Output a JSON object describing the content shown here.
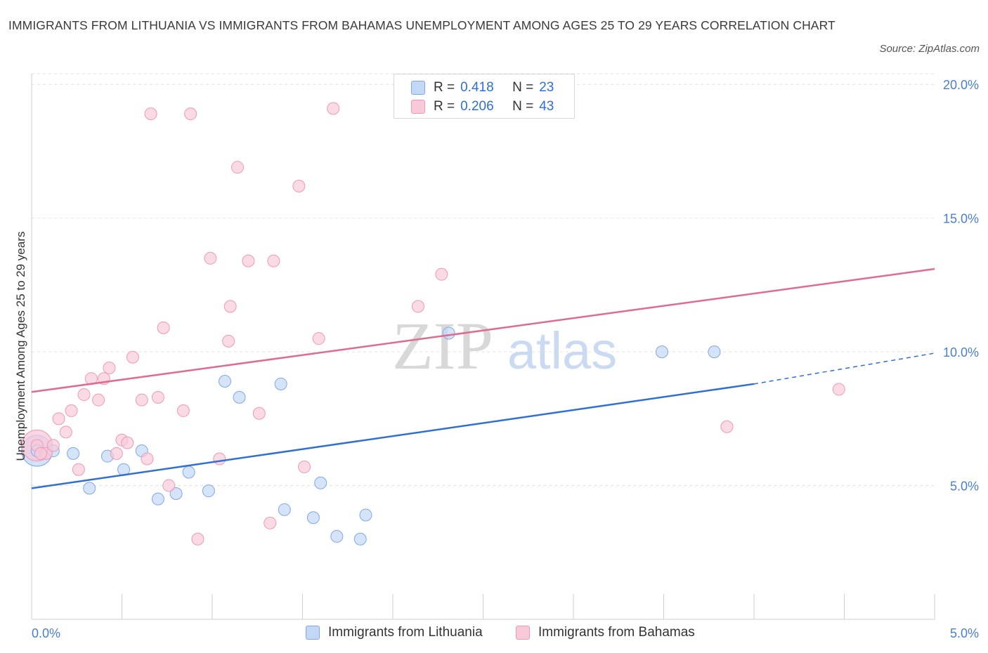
{
  "header": {
    "title": "IMMIGRANTS FROM LITHUANIA VS IMMIGRANTS FROM BAHAMAS UNEMPLOYMENT AMONG AGES 25 TO 29 YEARS CORRELATION CHART",
    "source": "Source: ZipAtlas.com"
  },
  "legend": {
    "rows": [
      {
        "r_label": "R =",
        "r_value": "0.418",
        "n_label": "N =",
        "n_value": "23"
      },
      {
        "r_label": "R =",
        "r_value": "0.206",
        "n_label": "N =",
        "n_value": "43"
      }
    ]
  },
  "watermark": {
    "zip": "ZIP",
    "atlas": "atlas"
  },
  "chart_data": {
    "type": "scatter",
    "ylabel": "Unemployment Among Ages 25 to 29 years",
    "xlim": [
      0.0,
      5.0
    ],
    "ylim": [
      0.0,
      20.4
    ],
    "x_tick_labels": [
      "0.0%",
      "5.0%"
    ],
    "y_ticks": [
      5.0,
      10.0,
      15.0,
      20.0
    ],
    "y_tick_labels": [
      "5.0%",
      "10.0%",
      "15.0%",
      "20.0%"
    ],
    "grid": true,
    "legend_position": "top-center",
    "series": [
      {
        "name": "Immigrants from Lithuania",
        "color": "#7fa8e8",
        "fill": "#c3d8f7",
        "line_color": "#2f6fd6",
        "trend": {
          "x0": 0.0,
          "y0": 4.9,
          "x1": 4.0,
          "y1": 8.8,
          "dash_to_x": 5.0,
          "dash_to_y": 9.95
        },
        "points": [
          [
            0.03,
            6.3
          ],
          [
            0.12,
            6.3
          ],
          [
            0.23,
            6.2
          ],
          [
            0.32,
            4.9
          ],
          [
            0.42,
            6.1
          ],
          [
            0.51,
            5.6
          ],
          [
            0.61,
            6.3
          ],
          [
            0.7,
            4.5
          ],
          [
            0.8,
            4.7
          ],
          [
            0.87,
            5.5
          ],
          [
            0.98,
            4.8
          ],
          [
            1.07,
            8.9
          ],
          [
            1.15,
            8.3
          ],
          [
            1.38,
            8.8
          ],
          [
            1.4,
            4.1
          ],
          [
            1.56,
            3.8
          ],
          [
            1.6,
            5.1
          ],
          [
            1.69,
            3.1
          ],
          [
            1.82,
            3.0
          ],
          [
            1.85,
            3.9
          ],
          [
            2.31,
            10.7
          ],
          [
            3.49,
            10.0
          ],
          [
            3.78,
            10.0
          ]
        ]
      },
      {
        "name": "Immigrants from Bahamas",
        "color": "#ee9ab5",
        "fill": "#f8cad9",
        "line_color": "#e06b91",
        "trend": {
          "x0": 0.0,
          "y0": 8.5,
          "x1": 5.0,
          "y1": 13.1
        },
        "points": [
          [
            0.03,
            6.5
          ],
          [
            0.08,
            6.2
          ],
          [
            0.12,
            6.5
          ],
          [
            0.15,
            7.5
          ],
          [
            0.19,
            7.0
          ],
          [
            0.22,
            7.8
          ],
          [
            0.26,
            5.6
          ],
          [
            0.29,
            8.4
          ],
          [
            0.33,
            9.0
          ],
          [
            0.37,
            8.2
          ],
          [
            0.4,
            9.0
          ],
          [
            0.43,
            9.4
          ],
          [
            0.47,
            6.2
          ],
          [
            0.5,
            6.7
          ],
          [
            0.53,
            6.6
          ],
          [
            0.56,
            9.8
          ],
          [
            0.61,
            8.2
          ],
          [
            0.64,
            6.0
          ],
          [
            0.66,
            18.9
          ],
          [
            0.7,
            8.3
          ],
          [
            0.73,
            10.9
          ],
          [
            0.76,
            5.0
          ],
          [
            0.84,
            7.8
          ],
          [
            0.88,
            18.9
          ],
          [
            0.92,
            3.0
          ],
          [
            0.99,
            13.5
          ],
          [
            1.04,
            6.0
          ],
          [
            1.09,
            10.4
          ],
          [
            1.1,
            11.7
          ],
          [
            1.14,
            16.9
          ],
          [
            1.2,
            13.4
          ],
          [
            1.26,
            7.7
          ],
          [
            1.32,
            3.6
          ],
          [
            1.34,
            13.4
          ],
          [
            1.48,
            16.2
          ],
          [
            1.51,
            5.7
          ],
          [
            1.59,
            10.5
          ],
          [
            1.67,
            19.1
          ],
          [
            2.14,
            11.7
          ],
          [
            2.27,
            12.9
          ],
          [
            3.85,
            7.2
          ],
          [
            4.47,
            8.6
          ],
          [
            0.05,
            6.2
          ]
        ]
      }
    ],
    "bubble_points": [
      {
        "series": 0,
        "x": 0.03,
        "y": 6.3,
        "size": "large"
      },
      {
        "series": 1,
        "x": 0.03,
        "y": 6.5,
        "size": "large"
      }
    ]
  },
  "bottom_legend": {
    "items": [
      "Immigrants from Lithuania",
      "Immigrants from Bahamas"
    ]
  }
}
